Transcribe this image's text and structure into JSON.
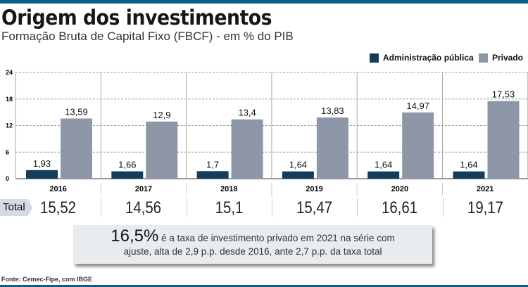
{
  "header": {
    "title": "Origem dos investimentos",
    "subtitle": "Formação Bruta de Capital Fixo (FBCF) - em % do PIB"
  },
  "chart_data": {
    "type": "bar",
    "categories": [
      "2016",
      "2017",
      "2018",
      "2019",
      "2020",
      "2021"
    ],
    "series": [
      {
        "name": "Administração pública",
        "color": "#123d5c",
        "values": [
          1.93,
          1.66,
          1.7,
          1.64,
          1.64,
          1.64
        ],
        "labels": [
          "1,93",
          "1,66",
          "1,7",
          "1,64",
          "1,64",
          "1,64"
        ]
      },
      {
        "name": "Privado",
        "color": "#8e97a8",
        "values": [
          13.59,
          12.9,
          13.4,
          13.83,
          14.97,
          17.53
        ],
        "labels": [
          "13,59",
          "12,9",
          "13,4",
          "13,83",
          "14,97",
          "17,53"
        ]
      }
    ],
    "ylim": [
      0,
      24
    ],
    "yticks": [
      "0",
      "6",
      "12",
      "18",
      "24"
    ],
    "grid": true,
    "legend": "top-right"
  },
  "totals": {
    "label": "Total",
    "values": [
      "15,52",
      "14,56",
      "15,1",
      "15,47",
      "16,61",
      "19,17"
    ]
  },
  "callout": {
    "highlight": "16,5%",
    "text1": " é a taxa de investimento privado em 2021 na série com",
    "text2": "ajuste, alta de 2,9 p.p. desde 2016, ante 2,7 p.p. da taxa total"
  },
  "source": "Fonte: Cemec-Fipe, com IBGE"
}
